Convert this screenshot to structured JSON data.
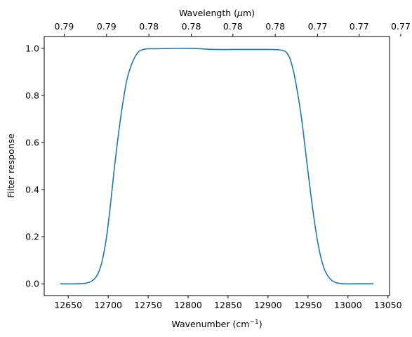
{
  "chart_data": {
    "type": "line",
    "xlabel": "Wavenumber (cm",
    "xlabel_sup": "−1",
    "xlabel_close": ")",
    "ylabel": "Filter response",
    "top_xlabel_prefix": "Wavelength (",
    "top_xlabel_mu": "μ",
    "top_xlabel_suffix": "m)",
    "xlim": [
      12620,
      13052
    ],
    "ylim": [
      -0.05,
      1.05
    ],
    "grid": false,
    "legend": "none",
    "line_color": "#1f77b4",
    "x_ticks": [
      "12650",
      "12700",
      "12750",
      "12800",
      "12850",
      "12900",
      "12950",
      "13000",
      "13050"
    ],
    "x_tick_values": [
      12650,
      12700,
      12750,
      12800,
      12850,
      12900,
      12950,
      13000,
      13050
    ],
    "y_ticks": [
      "0.0",
      "0.2",
      "0.4",
      "0.6",
      "0.8",
      "1.0"
    ],
    "y_tick_values": [
      0.0,
      0.2,
      0.4,
      0.6,
      0.8,
      1.0
    ],
    "top_ticks": [
      "0.79",
      "0.79",
      "0.78",
      "0.78",
      "0.78",
      "0.78",
      "0.77",
      "0.77",
      "0.77"
    ],
    "top_tick_positions": [
      12645,
      12698,
      12751,
      12804,
      12856,
      12909,
      12962,
      13014,
      13066
    ],
    "series": [
      {
        "x": [
          12640,
          12660,
          12675,
          12685,
          12692,
          12698,
          12703,
          12708,
          12713,
          12718,
          12723,
          12728,
          12733,
          12738,
          12742,
          12747,
          12752,
          12760,
          12775,
          12800,
          12815,
          12835,
          12870,
          12900,
          12915,
          12922,
          12927,
          12932,
          12937,
          12942,
          12947,
          12952,
          12957,
          12962,
          12967,
          12972,
          12978,
          12985,
          12995,
          13010,
          13032
        ],
        "y": [
          0.0,
          0.0,
          0.005,
          0.03,
          0.09,
          0.2,
          0.34,
          0.5,
          0.64,
          0.76,
          0.86,
          0.92,
          0.96,
          0.985,
          0.993,
          0.997,
          0.998,
          0.998,
          0.999,
          1.0,
          0.998,
          0.995,
          0.995,
          0.995,
          0.993,
          0.985,
          0.96,
          0.9,
          0.81,
          0.7,
          0.56,
          0.42,
          0.29,
          0.18,
          0.1,
          0.05,
          0.02,
          0.005,
          0.0,
          0.0,
          0.0
        ]
      }
    ]
  }
}
